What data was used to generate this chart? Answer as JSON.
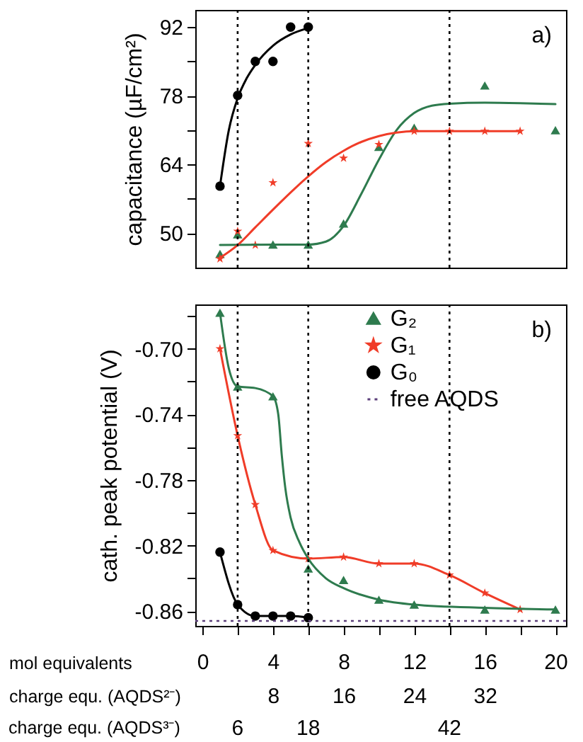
{
  "chart_data": [
    {
      "type": "scatter",
      "ylabel": "capacitance (µF/cm²)",
      "xlim": [
        -0.4,
        20.6
      ],
      "ylim": [
        43,
        95.5
      ],
      "yticks": [
        50,
        {
          "value": 57,
          "label": null
        },
        64,
        {
          "value": 71,
          "label": null
        },
        78,
        {
          "value": 85,
          "label": null
        },
        92
      ],
      "tick_labels": "y",
      "annotations": [
        "a)"
      ],
      "series": [
        {
          "color": "#2e7b4e",
          "marker": "triangle",
          "x": [
            1,
            2,
            4,
            6,
            8,
            10,
            12,
            16,
            20
          ],
          "values": [
            45.8,
            49.8,
            47.7,
            47.7,
            52,
            67.6,
            71.5,
            80.1,
            71
          ]
        },
        {
          "color": "#f03c28",
          "marker": "star",
          "x": [
            1,
            2,
            3,
            4,
            6,
            8,
            10,
            12,
            14,
            16,
            18
          ],
          "values": [
            44.8,
            50.4,
            47.6,
            60.3,
            68.3,
            65.3,
            68.1,
            70.8,
            70.8,
            70.8,
            70.8
          ]
        },
        {
          "color": "#000000",
          "marker": "circle",
          "x": [
            1,
            2,
            3,
            4,
            5,
            6
          ],
          "values": [
            59.6,
            78.1,
            85,
            85,
            92,
            92
          ]
        },
        {
          "type": "line",
          "color": "#2e7b4e",
          "marker": "none",
          "x": [
            1,
            4,
            6,
            7,
            8,
            9,
            10,
            11,
            12,
            13,
            14,
            16,
            18,
            20
          ],
          "values": [
            47.6,
            47.7,
            47.7,
            48.3,
            51.5,
            58,
            65,
            71,
            74.5,
            76,
            76.4,
            76.6,
            76.5,
            76.3
          ]
        },
        {
          "type": "line",
          "color": "#f03c28",
          "marker": "none",
          "x": [
            1,
            2,
            3,
            4,
            5,
            6,
            7,
            8,
            9,
            10,
            11,
            12,
            14,
            16,
            18
          ],
          "values": [
            45,
            47.6,
            51.2,
            54.8,
            58.3,
            61.6,
            64.5,
            66.8,
            68.6,
            69.8,
            70.5,
            70.8,
            70.8,
            70.8,
            70.8
          ]
        },
        {
          "type": "line",
          "color": "#000000",
          "marker": "none",
          "x": [
            1,
            1.5,
            2,
            2.5,
            3,
            4,
            5,
            6
          ],
          "values": [
            59.6,
            71,
            77.5,
            81.5,
            84.3,
            88.2,
            90.5,
            91.8
          ]
        }
      ],
      "ref_lines": [
        {
          "axis": "x",
          "value": 2,
          "color": "#000000",
          "line_style": "dotted"
        },
        {
          "axis": "x",
          "value": 6,
          "color": "#000000",
          "line_style": "dotted"
        },
        {
          "axis": "x",
          "value": 14,
          "color": "#000000",
          "line_style": "dotted"
        }
      ]
    },
    {
      "type": "line",
      "ylabel": "cath. peak potential (V)",
      "xlabel": "mol equivalents",
      "x2label": "charge equ. (AQDS²⁻)",
      "xlim": [
        -0.4,
        20.6
      ],
      "xticks": [
        0,
        {
          "value": 2,
          "label": null
        },
        4,
        {
          "value": 6,
          "label": null
        },
        8,
        {
          "value": 10,
          "label": null
        },
        12,
        {
          "value": 14,
          "label": null
        },
        16,
        {
          "value": 18,
          "label": null
        },
        20
      ],
      "x2lim": [
        -0.8,
        41.2
      ],
      "x2ticks": [
        8,
        16,
        24,
        32
      ],
      "ylim": [
        -0.869,
        -0.673
      ],
      "yticks": [
        -0.86,
        {
          "value": -0.84,
          "label": null
        },
        -0.82,
        {
          "value": -0.8,
          "label": null
        },
        -0.78,
        {
          "value": -0.76,
          "label": null
        },
        -0.74,
        {
          "value": -0.72,
          "label": null
        },
        {
          "value": -0.7,
          "label": "-0.70"
        },
        {
          "value": -0.68,
          "label": null
        }
      ],
      "legend": "top right",
      "annotations": [
        "b)",
        "charge equ. (AQDS³⁻)",
        "6",
        "18",
        "42"
      ],
      "series": [
        {
          "type": "scatter",
          "name": "G₂",
          "color": "#2e7b4e",
          "marker": "triangle",
          "x": [
            1,
            2,
            4,
            6,
            8,
            10,
            12,
            16,
            20
          ],
          "values": [
            -0.678,
            -0.723,
            -0.729,
            -0.834,
            -0.841,
            -0.853,
            -0.856,
            -0.859,
            -0.859
          ]
        },
        {
          "name": "G₁",
          "color": "#f03c28",
          "marker": "star",
          "x": [
            1,
            2,
            3,
            4,
            6,
            8,
            10,
            12,
            14,
            16,
            18
          ],
          "values": [
            -0.7,
            -0.753,
            -0.795,
            -0.823,
            -0.828,
            -0.827,
            -0.831,
            -0.831,
            -0.838,
            -0.849,
            -0.859
          ]
        },
        {
          "name": "G₀",
          "color": "#000000",
          "marker": "circle",
          "x": [
            1,
            2,
            3,
            4,
            5,
            6
          ],
          "values": [
            -0.824,
            -0.856,
            -0.863,
            -0.863,
            -0.863,
            -0.864
          ]
        },
        {
          "color": "#2e7b4e",
          "marker": "none",
          "x": [
            1,
            1.5,
            2,
            3,
            4,
            4.3,
            4.5,
            4.7,
            5,
            5.5,
            6,
            7,
            8,
            10,
            12,
            16,
            20
          ],
          "values": [
            -0.678,
            -0.712,
            -0.723,
            -0.724,
            -0.729,
            -0.74,
            -0.765,
            -0.785,
            -0.803,
            -0.818,
            -0.828,
            -0.84,
            -0.846,
            -0.853,
            -0.856,
            -0.858,
            -0.859
          ]
        }
      ],
      "ref_lines": [
        {
          "axis": "x",
          "value": 2,
          "color": "#000000",
          "line_style": "dotted"
        },
        {
          "axis": "x",
          "value": 6,
          "color": "#000000",
          "line_style": "dotted"
        },
        {
          "axis": "x",
          "value": 14,
          "color": "#000000",
          "line_style": "dotted"
        },
        {
          "axis": "y",
          "value": -0.866,
          "label": "free AQDS",
          "color": "#5b3f7a",
          "line_style": "dotted"
        }
      ]
    }
  ]
}
